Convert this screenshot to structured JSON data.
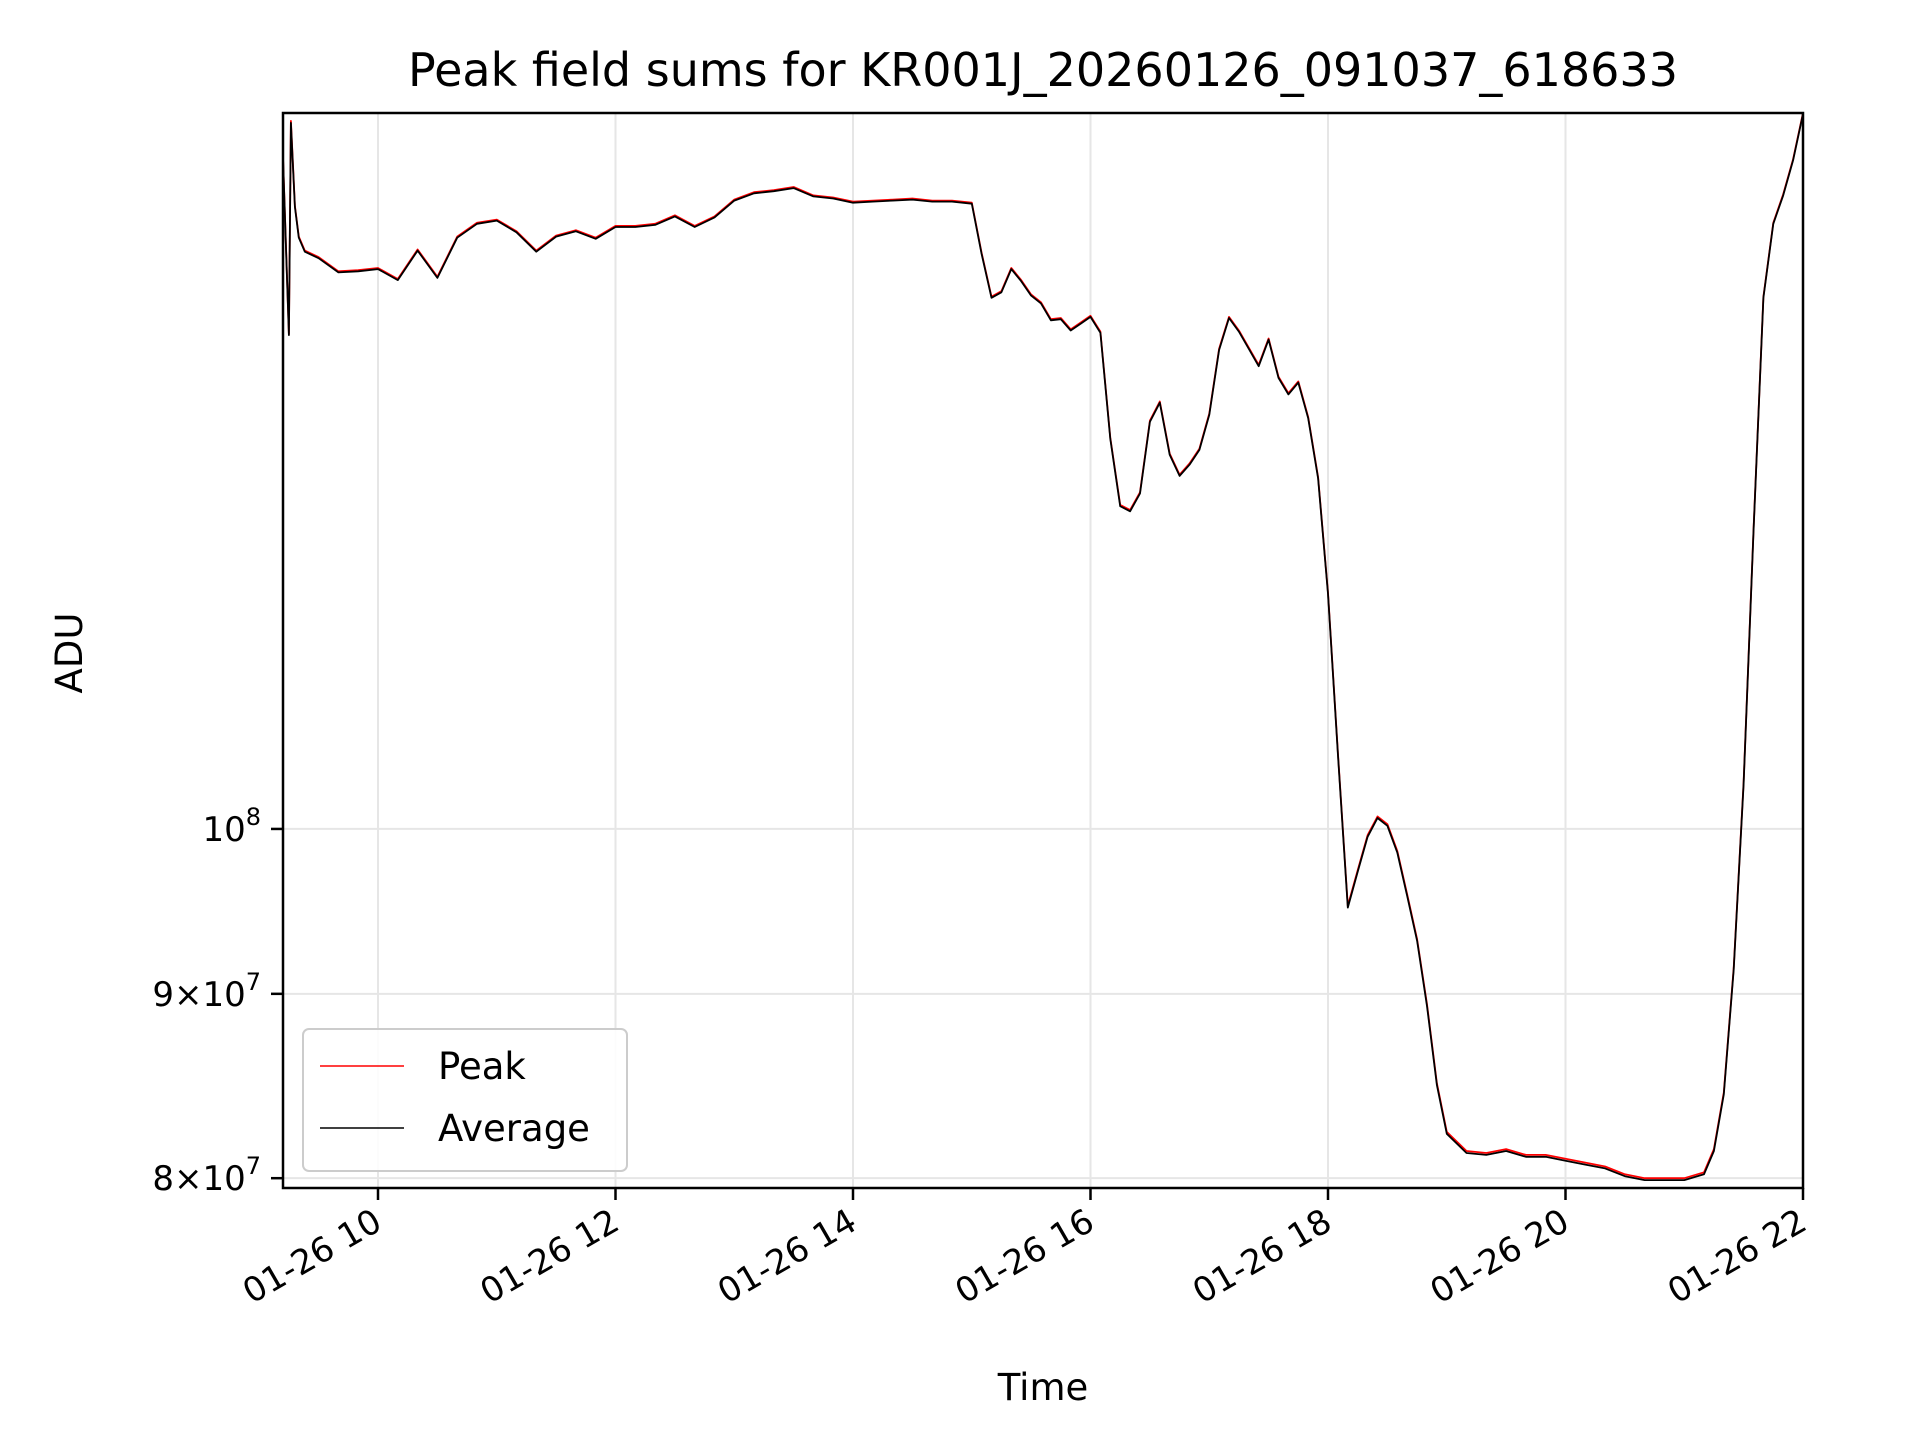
{
  "chart_data": {
    "type": "line",
    "title": "Peak field sums for KR001J_20260126_091037_618633",
    "xlabel": "Time",
    "ylabel": "ADU",
    "x_axis_type": "datetime",
    "xlim": [
      "2026-01-26T09:12",
      "2026-01-26T22:00"
    ],
    "ylim": [
      79500000,
      158000000
    ],
    "y_scale": "log",
    "grid": true,
    "legend_position": "lower-left",
    "x_ticks": [
      {
        "value": "2026-01-26T10:00",
        "label": "01-26 10"
      },
      {
        "value": "2026-01-26T12:00",
        "label": "01-26 12"
      },
      {
        "value": "2026-01-26T14:00",
        "label": "01-26 14"
      },
      {
        "value": "2026-01-26T16:00",
        "label": "01-26 16"
      },
      {
        "value": "2026-01-26T18:00",
        "label": "01-26 18"
      },
      {
        "value": "2026-01-26T20:00",
        "label": "01-26 20"
      },
      {
        "value": "2026-01-26T22:00",
        "label": "01-26 22"
      }
    ],
    "y_ticks": [
      {
        "value": 80000000,
        "label": "8×10^7",
        "mant": "8",
        "exp": "7"
      },
      {
        "value": 90000000,
        "label": "9×10^7",
        "mant": "9",
        "exp": "7"
      },
      {
        "value": 100000000,
        "label": "10^8",
        "mant": "",
        "exp": "8"
      }
    ],
    "series": [
      {
        "name": "Peak",
        "color": "#ff0000",
        "x": [
          "2026-01-26T09:12",
          "2026-01-26T09:15",
          "2026-01-26T09:16",
          "2026-01-26T09:18",
          "2026-01-26T09:20",
          "2026-01-26T09:23",
          "2026-01-26T09:30",
          "2026-01-26T09:40",
          "2026-01-26T09:50",
          "2026-01-26T10:00",
          "2026-01-26T10:10",
          "2026-01-26T10:20",
          "2026-01-26T10:30",
          "2026-01-26T10:40",
          "2026-01-26T10:50",
          "2026-01-26T11:00",
          "2026-01-26T11:10",
          "2026-01-26T11:20",
          "2026-01-26T11:30",
          "2026-01-26T11:40",
          "2026-01-26T11:50",
          "2026-01-26T12:00",
          "2026-01-26T12:10",
          "2026-01-26T12:20",
          "2026-01-26T12:30",
          "2026-01-26T12:40",
          "2026-01-26T12:50",
          "2026-01-26T13:00",
          "2026-01-26T13:10",
          "2026-01-26T13:20",
          "2026-01-26T13:30",
          "2026-01-26T13:40",
          "2026-01-26T13:50",
          "2026-01-26T14:00",
          "2026-01-26T14:10",
          "2026-01-26T14:20",
          "2026-01-26T14:30",
          "2026-01-26T14:40",
          "2026-01-26T14:50",
          "2026-01-26T15:00",
          "2026-01-26T15:05",
          "2026-01-26T15:10",
          "2026-01-26T15:15",
          "2026-01-26T15:20",
          "2026-01-26T15:25",
          "2026-01-26T15:30",
          "2026-01-26T15:35",
          "2026-01-26T15:40",
          "2026-01-26T15:45",
          "2026-01-26T15:50",
          "2026-01-26T15:55",
          "2026-01-26T16:00",
          "2026-01-26T16:05",
          "2026-01-26T16:10",
          "2026-01-26T16:15",
          "2026-01-26T16:20",
          "2026-01-26T16:25",
          "2026-01-26T16:30",
          "2026-01-26T16:35",
          "2026-01-26T16:40",
          "2026-01-26T16:45",
          "2026-01-26T16:50",
          "2026-01-26T16:55",
          "2026-01-26T17:00",
          "2026-01-26T17:05",
          "2026-01-26T17:10",
          "2026-01-26T17:15",
          "2026-01-26T17:20",
          "2026-01-26T17:25",
          "2026-01-26T17:30",
          "2026-01-26T17:35",
          "2026-01-26T17:40",
          "2026-01-26T17:45",
          "2026-01-26T17:50",
          "2026-01-26T17:55",
          "2026-01-26T18:00",
          "2026-01-26T18:05",
          "2026-01-26T18:10",
          "2026-01-26T18:15",
          "2026-01-26T18:20",
          "2026-01-26T18:25",
          "2026-01-26T18:30",
          "2026-01-26T18:35",
          "2026-01-26T18:40",
          "2026-01-26T18:45",
          "2026-01-26T18:50",
          "2026-01-26T18:55",
          "2026-01-26T19:00",
          "2026-01-26T19:10",
          "2026-01-26T19:20",
          "2026-01-26T19:30",
          "2026-01-26T19:40",
          "2026-01-26T19:50",
          "2026-01-26T20:00",
          "2026-01-26T20:10",
          "2026-01-26T20:20",
          "2026-01-26T20:30",
          "2026-01-26T20:40",
          "2026-01-26T20:50",
          "2026-01-26T21:00",
          "2026-01-26T21:10",
          "2026-01-26T21:15",
          "2026-01-26T21:20",
          "2026-01-26T21:25",
          "2026-01-26T21:30",
          "2026-01-26T21:35",
          "2026-01-26T21:40",
          "2026-01-26T21:45",
          "2026-01-26T21:50",
          "2026-01-26T21:55",
          "2026-01-26T22:00"
        ],
        "y": [
          153600000,
          137200000,
          157200000,
          148900000,
          146000000,
          144700000,
          144100000,
          142800000,
          142900000,
          143100000,
          142100000,
          144800000,
          142300000,
          146000000,
          147300000,
          147600000,
          146500000,
          144700000,
          146100000,
          146600000,
          145900000,
          147000000,
          147000000,
          147200000,
          148000000,
          147000000,
          147900000,
          149500000,
          150200000,
          150400000,
          150700000,
          149900000,
          149700000,
          149300000,
          149400000,
          149500000,
          149600000,
          149400000,
          149400000,
          149200000,
          144500000,
          140500000,
          141000000,
          143100000,
          142000000,
          140700000,
          140000000,
          138500000,
          138600000,
          137600000,
          138200000,
          138800000,
          137400000,
          128400000,
          123000000,
          122600000,
          124000000,
          129800000,
          131400000,
          127100000,
          125400000,
          126300000,
          127500000,
          130400000,
          135900000,
          138700000,
          137500000,
          136000000,
          134500000,
          136800000,
          133500000,
          132100000,
          133100000,
          130100000,
          125200000,
          116300000,
          105000000,
          95200000,
          97400000,
          99600000,
          100800000,
          100300000,
          98600000,
          95900000,
          93200000,
          89400000,
          85000000,
          82400000,
          81400000,
          81300000,
          81500000,
          81200000,
          81200000,
          81000000,
          80800000,
          80600000,
          80200000,
          80000000,
          80000000,
          80000000,
          80300000,
          81500000,
          84500000,
          91500000,
          103000000,
          121000000,
          140500000,
          147300000,
          150000000,
          153400000,
          158000000
        ]
      },
      {
        "name": "Average",
        "color": "#000000",
        "x": [
          "2026-01-26T09:12",
          "2026-01-26T09:15",
          "2026-01-26T09:16",
          "2026-01-26T09:18",
          "2026-01-26T09:20",
          "2026-01-26T09:23",
          "2026-01-26T09:30",
          "2026-01-26T09:40",
          "2026-01-26T09:50",
          "2026-01-26T10:00",
          "2026-01-26T10:10",
          "2026-01-26T10:20",
          "2026-01-26T10:30",
          "2026-01-26T10:40",
          "2026-01-26T10:50",
          "2026-01-26T11:00",
          "2026-01-26T11:10",
          "2026-01-26T11:20",
          "2026-01-26T11:30",
          "2026-01-26T11:40",
          "2026-01-26T11:50",
          "2026-01-26T12:00",
          "2026-01-26T12:10",
          "2026-01-26T12:20",
          "2026-01-26T12:30",
          "2026-01-26T12:40",
          "2026-01-26T12:50",
          "2026-01-26T13:00",
          "2026-01-26T13:10",
          "2026-01-26T13:20",
          "2026-01-26T13:30",
          "2026-01-26T13:40",
          "2026-01-26T13:50",
          "2026-01-26T14:00",
          "2026-01-26T14:10",
          "2026-01-26T14:20",
          "2026-01-26T14:30",
          "2026-01-26T14:40",
          "2026-01-26T14:50",
          "2026-01-26T15:00",
          "2026-01-26T15:05",
          "2026-01-26T15:10",
          "2026-01-26T15:15",
          "2026-01-26T15:20",
          "2026-01-26T15:25",
          "2026-01-26T15:30",
          "2026-01-26T15:35",
          "2026-01-26T15:40",
          "2026-01-26T15:45",
          "2026-01-26T15:50",
          "2026-01-26T15:55",
          "2026-01-26T16:00",
          "2026-01-26T16:05",
          "2026-01-26T16:10",
          "2026-01-26T16:15",
          "2026-01-26T16:20",
          "2026-01-26T16:25",
          "2026-01-26T16:30",
          "2026-01-26T16:35",
          "2026-01-26T16:40",
          "2026-01-26T16:45",
          "2026-01-26T16:50",
          "2026-01-26T16:55",
          "2026-01-26T17:00",
          "2026-01-26T17:05",
          "2026-01-26T17:10",
          "2026-01-26T17:15",
          "2026-01-26T17:20",
          "2026-01-26T17:25",
          "2026-01-26T17:30",
          "2026-01-26T17:35",
          "2026-01-26T17:40",
          "2026-01-26T17:45",
          "2026-01-26T17:50",
          "2026-01-26T17:55",
          "2026-01-26T18:00",
          "2026-01-26T18:05",
          "2026-01-26T18:10",
          "2026-01-26T18:15",
          "2026-01-26T18:20",
          "2026-01-26T18:25",
          "2026-01-26T18:30",
          "2026-01-26T18:35",
          "2026-01-26T18:40",
          "2026-01-26T18:45",
          "2026-01-26T18:50",
          "2026-01-26T18:55",
          "2026-01-26T19:00",
          "2026-01-26T19:10",
          "2026-01-26T19:20",
          "2026-01-26T19:30",
          "2026-01-26T19:40",
          "2026-01-26T19:50",
          "2026-01-26T20:00",
          "2026-01-26T20:10",
          "2026-01-26T20:20",
          "2026-01-26T20:30",
          "2026-01-26T20:40",
          "2026-01-26T20:50",
          "2026-01-26T21:00",
          "2026-01-26T21:10",
          "2026-01-26T21:15",
          "2026-01-26T21:20",
          "2026-01-26T21:25",
          "2026-01-26T21:30",
          "2026-01-26T21:35",
          "2026-01-26T21:40",
          "2026-01-26T21:45",
          "2026-01-26T21:50",
          "2026-01-26T21:55",
          "2026-01-26T22:00"
        ],
        "y": [
          153500000,
          137100000,
          157000000,
          148800000,
          145900000,
          144600000,
          144000000,
          142700000,
          142800000,
          143000000,
          142000000,
          144700000,
          142200000,
          145900000,
          147200000,
          147500000,
          146400000,
          144600000,
          146000000,
          146500000,
          145800000,
          146900000,
          146900000,
          147100000,
          147900000,
          146900000,
          147800000,
          149400000,
          150100000,
          150300000,
          150600000,
          149800000,
          149600000,
          149200000,
          149300000,
          149400000,
          149500000,
          149300000,
          149300000,
          149100000,
          144400000,
          140400000,
          140900000,
          143000000,
          141900000,
          140600000,
          139900000,
          138400000,
          138500000,
          137500000,
          138100000,
          138700000,
          137300000,
          128300000,
          122900000,
          122500000,
          123900000,
          129700000,
          131300000,
          127000000,
          125300000,
          126200000,
          127400000,
          130300000,
          135800000,
          138600000,
          137400000,
          135900000,
          134400000,
          136700000,
          133400000,
          132000000,
          133000000,
          130000000,
          125100000,
          116200000,
          104900000,
          95100000,
          97300000,
          99500000,
          100700000,
          100200000,
          98500000,
          95800000,
          93100000,
          89300000,
          84900000,
          82300000,
          81300000,
          81200000,
          81400000,
          81100000,
          81100000,
          80900000,
          80700000,
          80500000,
          80100000,
          79900000,
          79900000,
          79900000,
          80200000,
          81400000,
          84400000,
          91400000,
          102900000,
          120900000,
          140400000,
          147200000,
          149900000,
          153300000,
          157900000
        ]
      }
    ]
  }
}
